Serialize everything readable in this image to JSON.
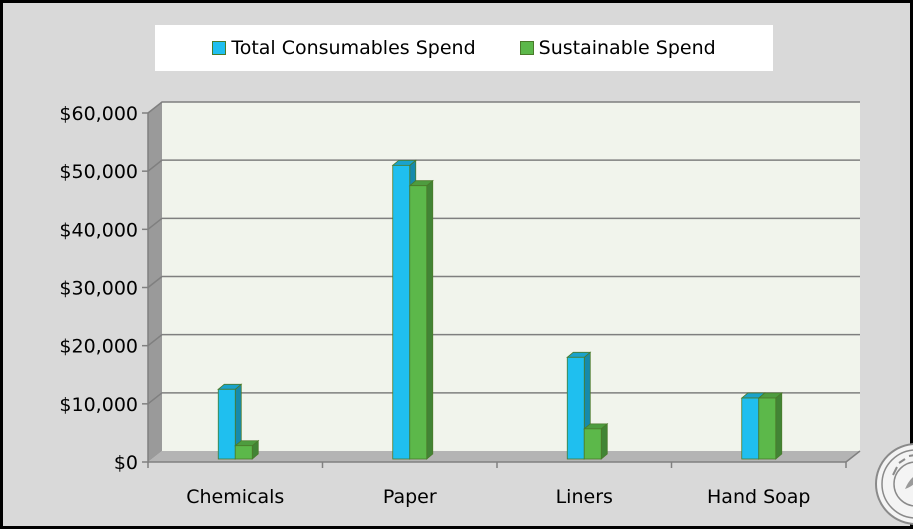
{
  "chart_data": {
    "type": "bar",
    "style": "3d-clustered-column",
    "title": "",
    "xlabel": "",
    "ylabel": "",
    "categories": [
      "Chemicals",
      "Paper",
      "Liners",
      "Hand Soap"
    ],
    "series": [
      {
        "name": "Total Consumables Spend",
        "values": [
          12500,
          51000,
          18000,
          11000
        ],
        "color": "#1fbfef"
      },
      {
        "name": "Sustainable Spend",
        "values": [
          2800,
          47500,
          5700,
          11000
        ],
        "color": "#5cb84a"
      }
    ],
    "ylim": [
      0,
      60000
    ],
    "yticks": [
      0,
      10000,
      20000,
      30000,
      40000,
      50000,
      60000
    ],
    "ytick_labels": [
      "$0",
      "$10,000",
      "$20,000",
      "$30,000",
      "$40,000",
      "$50,000",
      "$60,000"
    ],
    "grid": true,
    "legend_position": "top"
  },
  "colors": {
    "frame_background": "#d9d9d9",
    "plot_background": "#f1f4ec",
    "wall_side": "#9a9a9a",
    "floor": "#b4b4b4",
    "gridline": "#7f7f7f"
  },
  "icons": {
    "seal": "green-building-council-seal-icon"
  }
}
